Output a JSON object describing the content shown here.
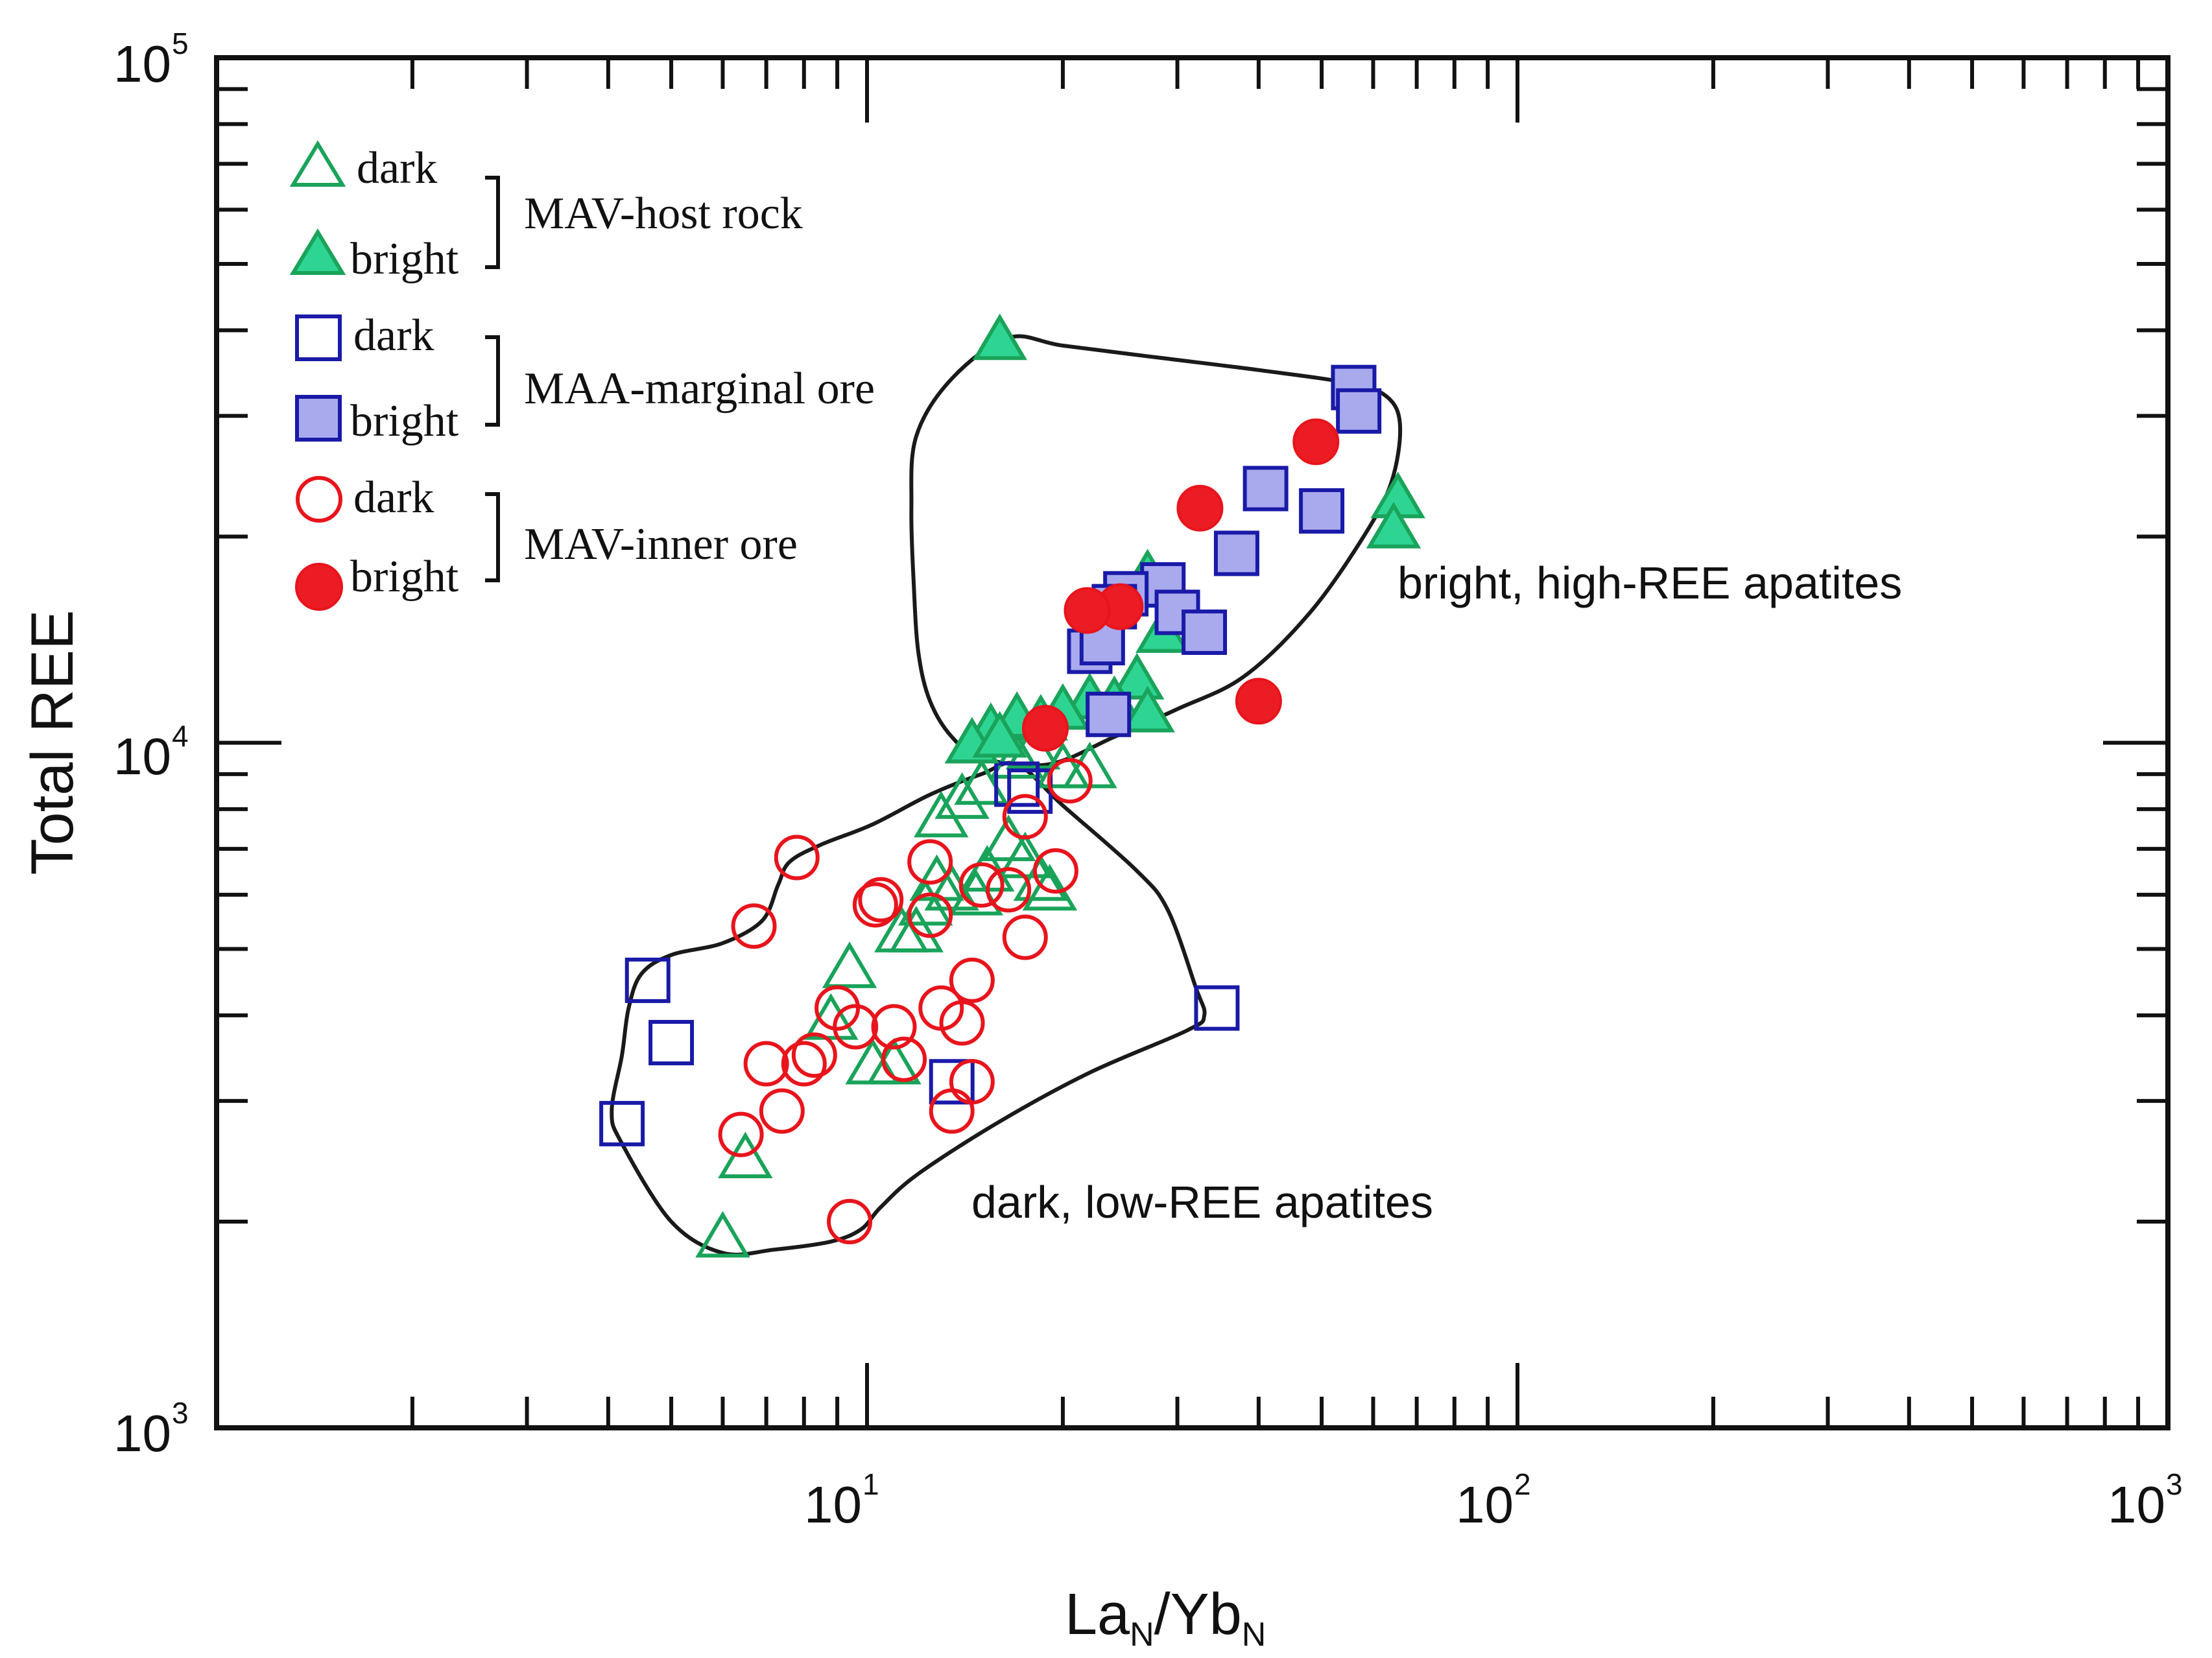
{
  "chart_data": {
    "type": "scatter",
    "xscale": "log",
    "yscale": "log",
    "xlim": [
      1,
      1000
    ],
    "ylim": [
      1000,
      100000
    ],
    "xlabel": "La",
    "xlabel_sub1": "N",
    "xlabel_mid": "/Yb",
    "xlabel_sub2": "N",
    "ylabel": "Total REE",
    "x_ticks": [
      {
        "value": 10,
        "base": "10",
        "exp": "1"
      },
      {
        "value": 100,
        "base": "10",
        "exp": "2"
      },
      {
        "value": 1000,
        "base": "10",
        "exp": "3"
      }
    ],
    "y_ticks": [
      {
        "value": 1000,
        "base": "10",
        "exp": "3"
      },
      {
        "value": 10000,
        "base": "10",
        "exp": "4"
      },
      {
        "value": 100000,
        "base": "10",
        "exp": "5"
      }
    ],
    "legend": {
      "position": "top-left",
      "groups": [
        {
          "name": "MAV-host rock",
          "dark": "dark",
          "bright": "bright"
        },
        {
          "name": "MAA-marginal ore",
          "dark": "dark",
          "bright": "bright"
        },
        {
          "name": "MAV-inner ore",
          "dark": "dark",
          "bright": "bright"
        }
      ]
    },
    "annotations": [
      {
        "text": "bright, high-REE  apatites",
        "x": 42,
        "y": 16500
      },
      {
        "text": "dark, low-REE  apatites",
        "x": 16,
        "y": 2000
      }
    ],
    "styles": {
      "triangle": {
        "stroke": "#1aa35a",
        "fill": "#2ed492"
      },
      "square": {
        "stroke": "#1a1aa8",
        "fill": "#a9a9ee"
      },
      "circle": {
        "stroke": "#e8141c",
        "fill": "#ec1c24"
      }
    },
    "regions": [
      {
        "name": "high-REE field",
        "points": [
          [
            16.5,
            39000
          ],
          [
            20,
            38000
          ],
          [
            28,
            36500
          ],
          [
            40,
            35000
          ],
          [
            55,
            33500
          ],
          [
            63,
            32000
          ],
          [
            66,
            29000
          ],
          [
            64,
            24000
          ],
          [
            58,
            20000
          ],
          [
            48,
            15500
          ],
          [
            38,
            12500
          ],
          [
            30,
            11200
          ],
          [
            24,
            10200
          ],
          [
            19,
            9300
          ],
          [
            15,
            9500
          ],
          [
            13.5,
            10200
          ],
          [
            12.5,
            11500
          ],
          [
            12,
            13500
          ],
          [
            11.8,
            17000
          ],
          [
            11.7,
            22000
          ],
          [
            11.9,
            28000
          ],
          [
            13.5,
            34000
          ],
          [
            16.5,
            39000
          ]
        ]
      },
      {
        "name": "low-REE field",
        "points": [
          [
            17,
            9300
          ],
          [
            15,
            9000
          ],
          [
            12.5,
            8400
          ],
          [
            10.2,
            7600
          ],
          [
            8.5,
            7100
          ],
          [
            7.6,
            6700
          ],
          [
            7.3,
            6200
          ],
          [
            6.9,
            5500
          ],
          [
            6,
            5100
          ],
          [
            5,
            4900
          ],
          [
            4.5,
            4600
          ],
          [
            4.3,
            4100
          ],
          [
            4.2,
            3500
          ],
          [
            4.05,
            2900
          ],
          [
            4.2,
            2600
          ],
          [
            5,
            2000
          ],
          [
            6,
            1800
          ],
          [
            7.2,
            1820
          ],
          [
            8.8,
            1870
          ],
          [
            9.8,
            1950
          ],
          [
            10.5,
            2100
          ],
          [
            12,
            2350
          ],
          [
            16,
            2800
          ],
          [
            22,
            3300
          ],
          [
            31,
            3800
          ],
          [
            33,
            4000
          ],
          [
            32,
            4400
          ],
          [
            29,
            5700
          ],
          [
            26,
            6500
          ],
          [
            20,
            8100
          ],
          [
            17,
            9300
          ]
        ]
      }
    ],
    "series": [
      {
        "name": "MAV-host rock dark",
        "marker": "triangle",
        "filled": false,
        "points": [
          [
            6.0,
            1900
          ],
          [
            6.5,
            2480
          ],
          [
            8.8,
            3950
          ],
          [
            9.4,
            4700
          ],
          [
            10.2,
            3400
          ],
          [
            11.0,
            3400
          ],
          [
            11.3,
            5300
          ],
          [
            11.9,
            5300
          ],
          [
            12.3,
            5800
          ],
          [
            12.8,
            6300
          ],
          [
            13.5,
            6100
          ],
          [
            14.7,
            6000
          ],
          [
            15.3,
            6500
          ],
          [
            16.5,
            7200
          ],
          [
            17.5,
            6800
          ],
          [
            18.5,
            6300
          ],
          [
            19.1,
            6100
          ],
          [
            13.0,
            7800
          ],
          [
            14.0,
            8300
          ],
          [
            15.0,
            8700
          ],
          [
            17.0,
            9500
          ],
          [
            18.0,
            9800
          ],
          [
            20.0,
            9200
          ],
          [
            22.0,
            9200
          ]
        ]
      },
      {
        "name": "MAV-host rock bright",
        "marker": "triangle",
        "filled": true,
        "points": [
          [
            16.0,
            38800
          ],
          [
            65.5,
            22800
          ],
          [
            64.5,
            20600
          ],
          [
            27.0,
            17600
          ],
          [
            28.5,
            14500
          ],
          [
            26.0,
            12400
          ],
          [
            24.0,
            11500
          ],
          [
            27.0,
            11100
          ],
          [
            22.0,
            11600
          ],
          [
            20.0,
            11200
          ],
          [
            18.5,
            10800
          ],
          [
            17.0,
            10900
          ],
          [
            15.5,
            10500
          ],
          [
            14.5,
            10000
          ],
          [
            16.0,
            10200
          ]
        ]
      },
      {
        "name": "MAA-marginal ore dark",
        "marker": "square",
        "filled": false,
        "points": [
          [
            4.6,
            4500
          ],
          [
            5.0,
            3650
          ],
          [
            4.2,
            2780
          ],
          [
            13.5,
            3200
          ],
          [
            34.5,
            4100
          ],
          [
            17.0,
            8700
          ],
          [
            17.8,
            8500
          ]
        ]
      },
      {
        "name": "MAA-marginal ore bright",
        "marker": "square",
        "filled": true,
        "points": [
          [
            56.0,
            33000
          ],
          [
            57.0,
            30500
          ],
          [
            41.0,
            23500
          ],
          [
            50.0,
            21800
          ],
          [
            37.0,
            18900
          ],
          [
            28.5,
            17000
          ],
          [
            25.0,
            16500
          ],
          [
            24.0,
            15800
          ],
          [
            30.0,
            15500
          ],
          [
            33.0,
            14500
          ],
          [
            22.0,
            13600
          ],
          [
            23.0,
            14000
          ],
          [
            23.5,
            11000
          ]
        ]
      },
      {
        "name": "MAV-inner ore dark",
        "marker": "circle",
        "filled": false,
        "points": [
          [
            7.8,
            6800
          ],
          [
            6.7,
            5400
          ],
          [
            10.3,
            5800
          ],
          [
            12.5,
            6700
          ],
          [
            12.5,
            5600
          ],
          [
            14.5,
            4500
          ],
          [
            15.0,
            6200
          ],
          [
            16.5,
            6100
          ],
          [
            17.5,
            5200
          ],
          [
            19.5,
            6500
          ],
          [
            20.5,
            8800
          ],
          [
            17.5,
            7800
          ],
          [
            7.0,
            3400
          ],
          [
            8.0,
            3400
          ],
          [
            8.3,
            3500
          ],
          [
            9.0,
            4100
          ],
          [
            9.6,
            3850
          ],
          [
            11.0,
            3850
          ],
          [
            11.4,
            3450
          ],
          [
            13.0,
            4100
          ],
          [
            14.0,
            3900
          ],
          [
            13.5,
            2900
          ],
          [
            14.5,
            3200
          ],
          [
            6.4,
            2680
          ],
          [
            7.4,
            2900
          ],
          [
            9.4,
            2000
          ],
          [
            10.5,
            5900
          ]
        ]
      },
      {
        "name": "MAV-inner ore bright",
        "marker": "circle",
        "filled": true,
        "points": [
          [
            49.0,
            27500
          ],
          [
            32.5,
            22000
          ],
          [
            24.5,
            15800
          ],
          [
            21.8,
            15600
          ],
          [
            40.0,
            11500
          ],
          [
            18.8,
            10500
          ]
        ]
      }
    ]
  }
}
